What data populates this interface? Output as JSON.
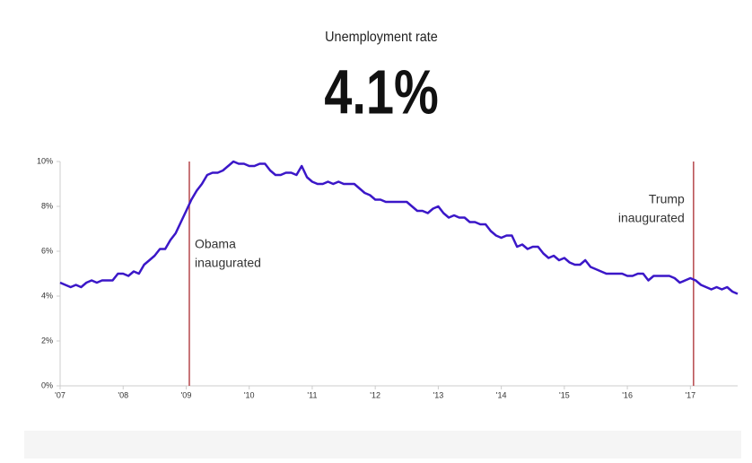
{
  "chart_data": {
    "type": "line",
    "title": "Unemployment rate",
    "headline": "4.1%",
    "x": [
      2007,
      2007.083,
      2007.167,
      2007.25,
      2007.333,
      2007.417,
      2007.5,
      2007.583,
      2007.667,
      2007.75,
      2007.833,
      2007.917,
      2008,
      2008.083,
      2008.167,
      2008.25,
      2008.333,
      2008.417,
      2008.5,
      2008.583,
      2008.667,
      2008.75,
      2008.833,
      2008.917,
      2009,
      2009.083,
      2009.167,
      2009.25,
      2009.333,
      2009.417,
      2009.5,
      2009.583,
      2009.667,
      2009.75,
      2009.833,
      2009.917,
      2010,
      2010.083,
      2010.167,
      2010.25,
      2010.333,
      2010.417,
      2010.5,
      2010.583,
      2010.667,
      2010.75,
      2010.833,
      2010.917,
      2011,
      2011.083,
      2011.167,
      2011.25,
      2011.333,
      2011.417,
      2011.5,
      2011.583,
      2011.667,
      2011.75,
      2011.833,
      2011.917,
      2012,
      2012.083,
      2012.167,
      2012.25,
      2012.333,
      2012.417,
      2012.5,
      2012.583,
      2012.667,
      2012.75,
      2012.833,
      2012.917,
      2013,
      2013.083,
      2013.167,
      2013.25,
      2013.333,
      2013.417,
      2013.5,
      2013.583,
      2013.667,
      2013.75,
      2013.833,
      2013.917,
      2014,
      2014.083,
      2014.167,
      2014.25,
      2014.333,
      2014.417,
      2014.5,
      2014.583,
      2014.667,
      2014.75,
      2014.833,
      2014.917,
      2015,
      2015.083,
      2015.167,
      2015.25,
      2015.333,
      2015.417,
      2015.5,
      2015.583,
      2015.667,
      2015.75,
      2015.833,
      2015.917,
      2016,
      2016.083,
      2016.167,
      2016.25,
      2016.333,
      2016.417,
      2016.5,
      2016.583,
      2016.667,
      2016.75,
      2016.833,
      2016.917,
      2017,
      2017.083,
      2017.167,
      2017.25,
      2017.333,
      2017.417,
      2017.5,
      2017.583,
      2017.667,
      2017.75
    ],
    "series": [
      {
        "color": "#3b17c8",
        "values": [
          4.6,
          4.5,
          4.4,
          4.5,
          4.4,
          4.6,
          4.7,
          4.6,
          4.7,
          4.7,
          4.7,
          5.0,
          5.0,
          4.9,
          5.1,
          5.0,
          5.4,
          5.6,
          5.8,
          6.1,
          6.1,
          6.5,
          6.8,
          7.3,
          7.8,
          8.3,
          8.7,
          9.0,
          9.4,
          9.5,
          9.5,
          9.6,
          9.8,
          10.0,
          9.9,
          9.9,
          9.8,
          9.8,
          9.9,
          9.9,
          9.6,
          9.4,
          9.4,
          9.5,
          9.5,
          9.4,
          9.8,
          9.3,
          9.1,
          9.0,
          9.0,
          9.1,
          9.0,
          9.1,
          9.0,
          9.0,
          9.0,
          8.8,
          8.6,
          8.5,
          8.3,
          8.3,
          8.2,
          8.2,
          8.2,
          8.2,
          8.2,
          8.0,
          7.8,
          7.8,
          7.7,
          7.9,
          8.0,
          7.7,
          7.5,
          7.6,
          7.5,
          7.5,
          7.3,
          7.3,
          7.2,
          7.2,
          6.9,
          6.7,
          6.6,
          6.7,
          6.7,
          6.2,
          6.3,
          6.1,
          6.2,
          6.2,
          5.9,
          5.7,
          5.8,
          5.6,
          5.7,
          5.5,
          5.4,
          5.4,
          5.6,
          5.3,
          5.2,
          5.1,
          5.0,
          5.0,
          5.0,
          5.0,
          4.9,
          4.9,
          5.0,
          5.0,
          4.7,
          4.9,
          4.9,
          4.9,
          4.9,
          4.8,
          4.6,
          4.7,
          4.8,
          4.7,
          4.5,
          4.4,
          4.3,
          4.4,
          4.3,
          4.4,
          4.2,
          4.1
        ]
      }
    ],
    "xlim": [
      2007,
      2017.75
    ],
    "xticks": [
      {
        "value": 2007,
        "label": "'07"
      },
      {
        "value": 2008,
        "label": "'08"
      },
      {
        "value": 2009,
        "label": "'09"
      },
      {
        "value": 2010,
        "label": "'10"
      },
      {
        "value": 2011,
        "label": "'11"
      },
      {
        "value": 2012,
        "label": "'12"
      },
      {
        "value": 2013,
        "label": "'13"
      },
      {
        "value": 2014,
        "label": "'14"
      },
      {
        "value": 2015,
        "label": "'15"
      },
      {
        "value": 2016,
        "label": "'16"
      },
      {
        "value": 2017,
        "label": "'17"
      }
    ],
    "ylim": [
      0,
      10
    ],
    "yticks": [
      {
        "value": 0,
        "label": "0%"
      },
      {
        "value": 2,
        "label": "2%"
      },
      {
        "value": 4,
        "label": "4%"
      },
      {
        "value": 6,
        "label": "6%"
      },
      {
        "value": 8,
        "label": "8%"
      },
      {
        "value": 10,
        "label": "10%"
      }
    ],
    "annotations": [
      {
        "x": 2009.05,
        "lines": [
          "Obama",
          "inaugurated"
        ],
        "side": "right",
        "color": "#b5474b"
      },
      {
        "x": 2017.05,
        "lines": [
          "Trump",
          "inaugurated"
        ],
        "side": "left",
        "color": "#b5474b"
      }
    ]
  }
}
